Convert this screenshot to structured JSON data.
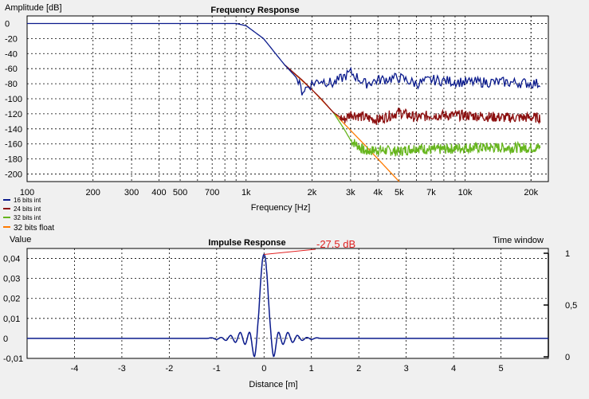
{
  "colors": {
    "background": "#f0f0f0",
    "plot_bg": "#ffffff",
    "grid": "#000000",
    "series_16": "#0a1a8c",
    "series_24": "#8c1010",
    "series_32": "#66b51d",
    "series_float": "#ff7a00",
    "impulse": "#0a1a8c",
    "annotation": "#e02020"
  },
  "chart_data": [
    {
      "type": "line",
      "title": "Frequency Response",
      "xlabel": "Frequency [Hz]",
      "ylabel": "Amplitude [dB]",
      "xscale": "log",
      "xlim": [
        100,
        24000
      ],
      "ylim": [
        -210,
        10
      ],
      "grid": true,
      "x_ticks": [
        100,
        200,
        300,
        400,
        500,
        700,
        1000,
        2000,
        3000,
        4000,
        5000,
        7000,
        10000,
        20000
      ],
      "x_tick_labels": [
        "100",
        "200",
        "300",
        "400",
        "500",
        "700",
        "1k",
        "2k",
        "3k",
        "4k",
        "5k",
        "7k",
        "10k",
        "20k"
      ],
      "y_ticks": [
        0,
        -20,
        -40,
        -60,
        -80,
        -100,
        -120,
        -140,
        -160,
        -180,
        -200
      ],
      "y_tick_labels": [
        "0",
        "-20",
        "-40",
        "-60",
        "-80",
        "-100",
        "-120",
        "-140",
        "-160",
        "-180",
        "-200"
      ],
      "legend_placement": "bottom-left",
      "series": [
        {
          "name": "16 bits int",
          "color": "#0a1a8c",
          "x": [
            100,
            500,
            900,
            1000,
            1200,
            1500,
            1700,
            1800,
            2000,
            2200,
            2500,
            3000,
            3500,
            4000,
            5000,
            6000,
            7000,
            10000,
            15000,
            22000
          ],
          "y": [
            0,
            0,
            0,
            -3,
            -20,
            -55,
            -72,
            -90,
            -80,
            -75,
            -80,
            -65,
            -80,
            -75,
            -72,
            -80,
            -75,
            -78,
            -78,
            -80
          ]
        },
        {
          "name": "24 bits int",
          "color": "#8c1010",
          "x": [
            1500,
            1800,
            2000,
            2200,
            2500,
            2800,
            3000,
            3500,
            4000,
            5000,
            6000,
            7000,
            10000,
            15000,
            22000
          ],
          "y": [
            -55,
            -75,
            -88,
            -100,
            -118,
            -128,
            -120,
            -125,
            -128,
            -118,
            -125,
            -122,
            -122,
            -125,
            -125
          ]
        },
        {
          "name": "32 bits int",
          "color": "#66b51d",
          "x": [
            2500,
            2800,
            3000,
            3500,
            4000,
            5000,
            6000,
            7000,
            10000,
            15000,
            22000
          ],
          "y": [
            -118,
            -140,
            -155,
            -170,
            -168,
            -170,
            -165,
            -168,
            -165,
            -165,
            -165
          ]
        },
        {
          "name": "32 bits float",
          "color": "#ff7a00",
          "x": [
            1500,
            2000,
            2500,
            3000,
            3500,
            4000,
            5000
          ],
          "y": [
            -55,
            -88,
            -118,
            -142,
            -162,
            -180,
            -210
          ]
        }
      ]
    },
    {
      "type": "line",
      "title": "Impulse Response",
      "xlabel": "Distance [m]",
      "ylabel": "Value",
      "y2label": "Time window",
      "xlim": [
        -5,
        6
      ],
      "ylim": [
        -0.01,
        0.045
      ],
      "y2lim": [
        0,
        1
      ],
      "grid": true,
      "x_ticks": [
        -4,
        -3,
        -2,
        -1,
        0,
        1,
        2,
        3,
        4,
        5
      ],
      "x_tick_labels": [
        "-4",
        "-3",
        "-2",
        "-1",
        "0",
        "1",
        "2",
        "3",
        "4",
        "5"
      ],
      "y_ticks": [
        0.04,
        0.03,
        0.02,
        0.01,
        0,
        -0.01
      ],
      "y_tick_labels": [
        "0,04",
        "0,03",
        "0,02",
        "0,01",
        "0",
        "-0,01"
      ],
      "y2_ticks": [
        1,
        0.5,
        0
      ],
      "y2_tick_labels": [
        "1",
        "0,5",
        "0"
      ],
      "annotation": {
        "text": "-27.5 dB",
        "x": 0,
        "y": 0.042
      },
      "series": [
        {
          "color": "#0a1a8c",
          "x": [
            -5,
            -1.2,
            -1.1,
            -1.0,
            -0.9,
            -0.8,
            -0.7,
            -0.6,
            -0.5,
            -0.4,
            -0.3,
            -0.2,
            -0.12,
            -0.05,
            0,
            0.05,
            0.12,
            0.2,
            0.3,
            0.4,
            0.5,
            0.6,
            0.7,
            0.8,
            0.9,
            1.0,
            1.1,
            1.2,
            6
          ],
          "y": [
            0,
            0,
            0.0003,
            -0.0005,
            0.0005,
            -0.001,
            0.0015,
            -0.002,
            0.003,
            -0.003,
            0.003,
            -0.009,
            0.01,
            0.035,
            0.042,
            0.035,
            0.01,
            -0.009,
            0.003,
            -0.003,
            0.003,
            -0.002,
            0.0015,
            -0.001,
            0.0005,
            -0.0005,
            0.0003,
            0,
            0
          ]
        }
      ]
    }
  ]
}
